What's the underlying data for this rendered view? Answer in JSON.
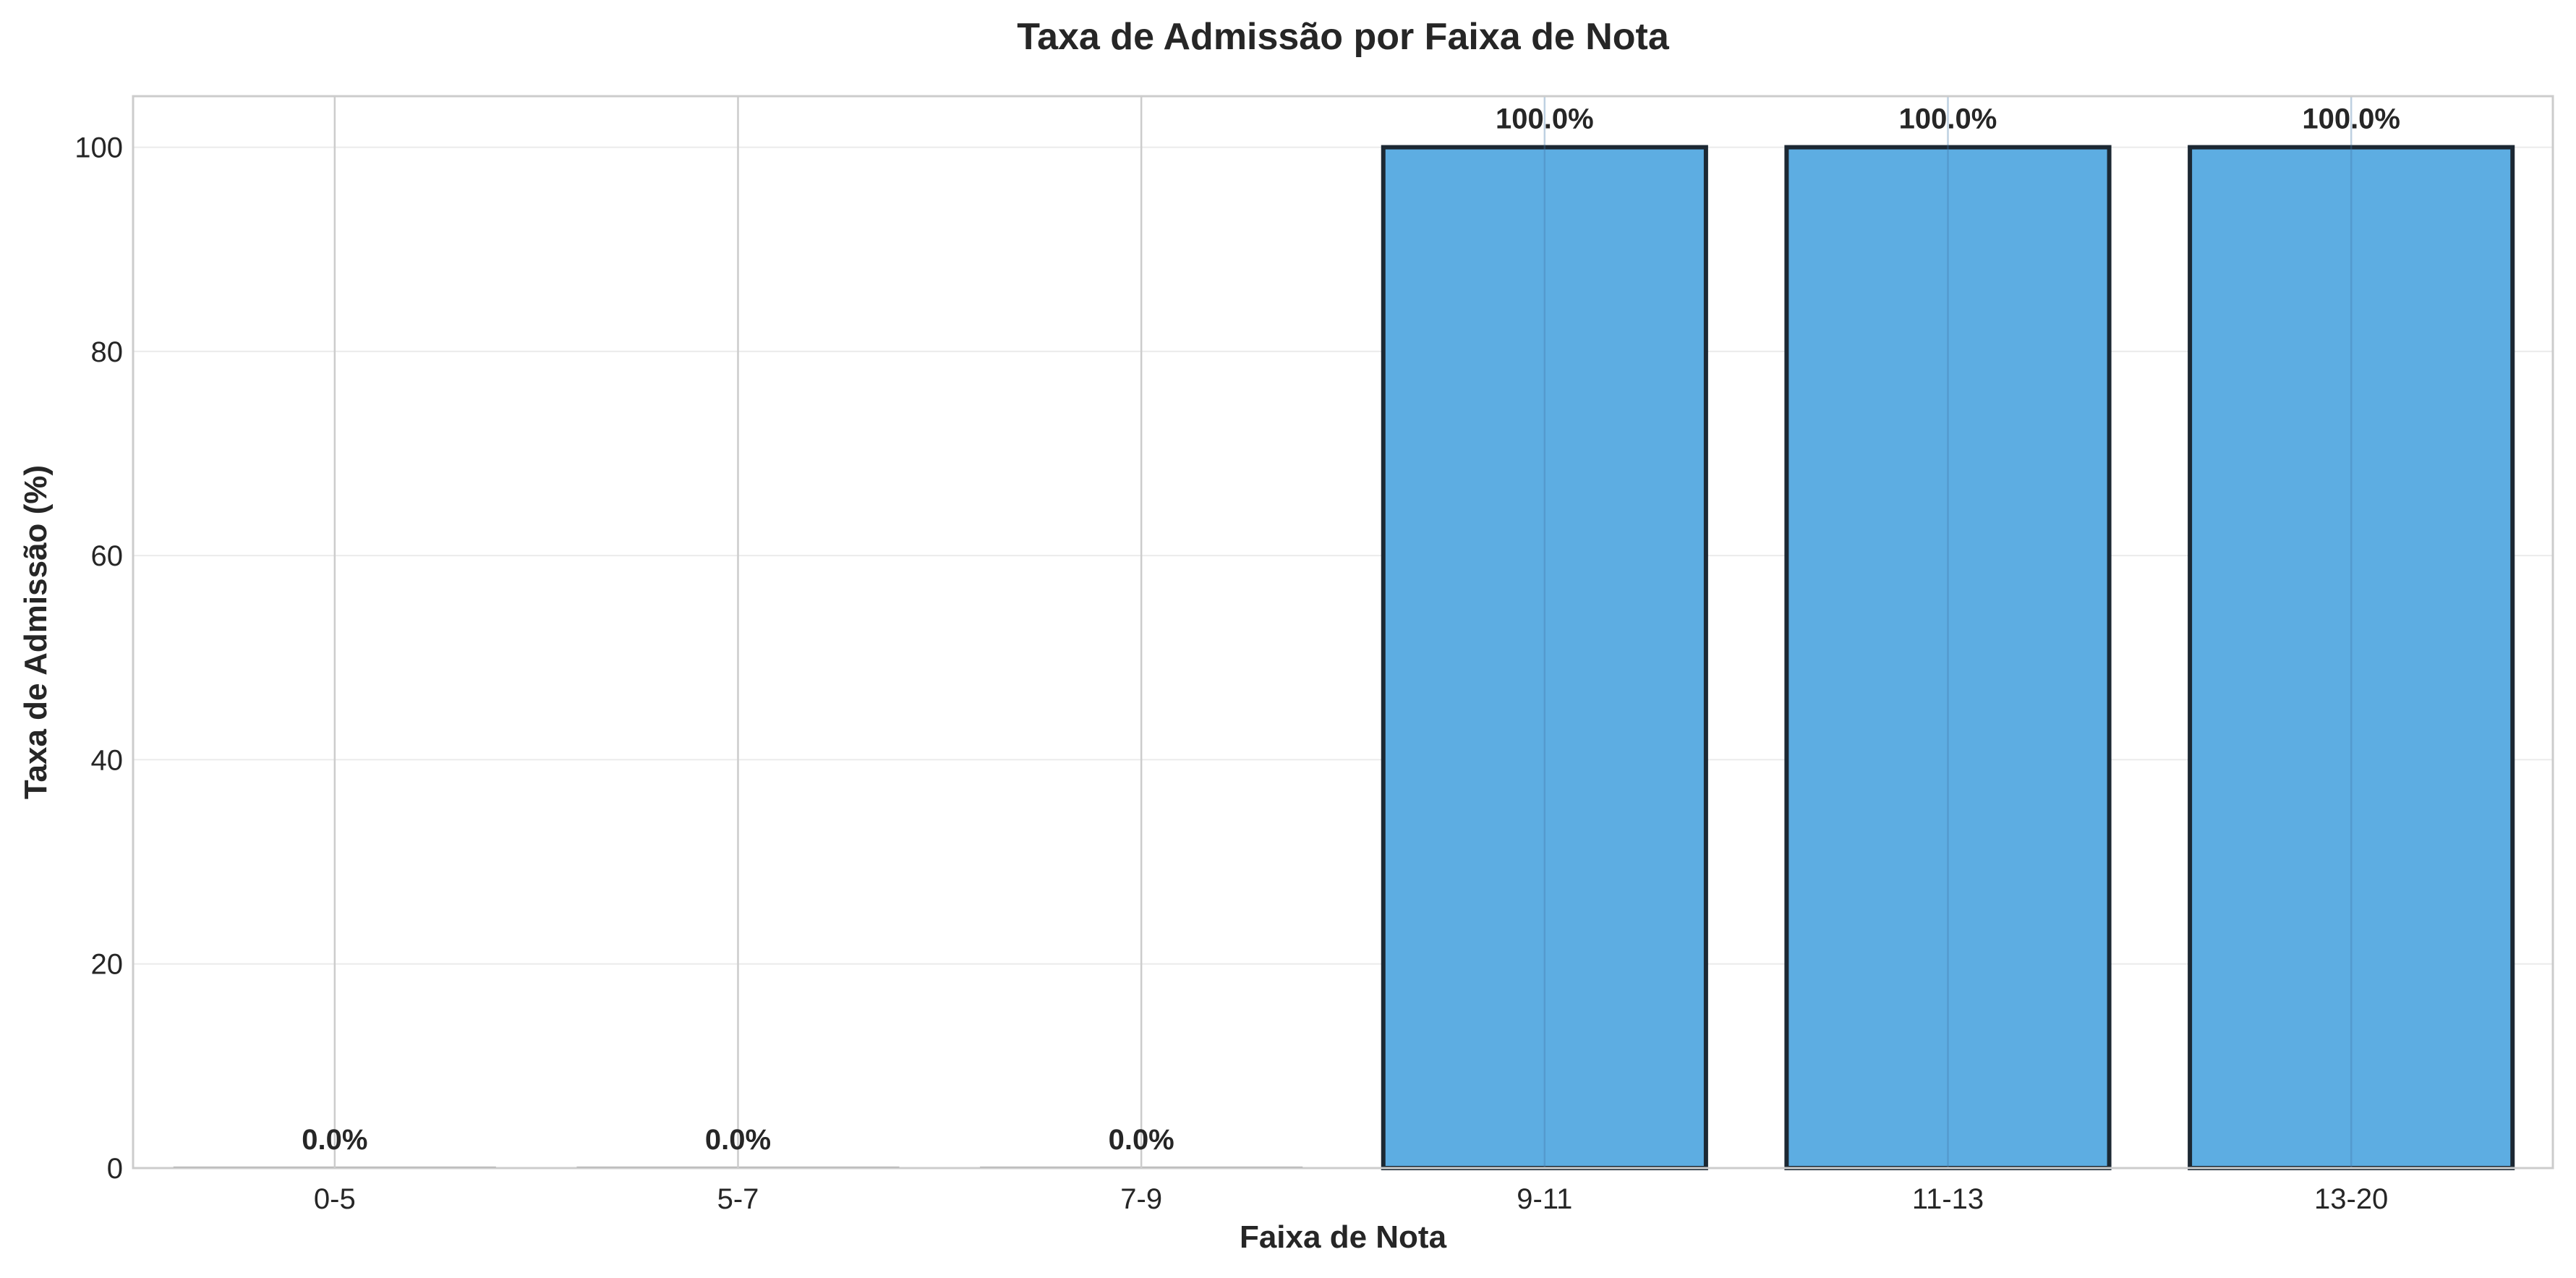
{
  "chart_data": {
    "type": "bar",
    "title": "Taxa de Admissão por Faixa de Nota",
    "xlabel": "Faixa de Nota",
    "ylabel": "Taxa de Admissão (%)",
    "categories": [
      "0-5",
      "5-7",
      "7-9",
      "9-11",
      "11-13",
      "13-20"
    ],
    "values": [
      0,
      0,
      0,
      100,
      100,
      100
    ],
    "value_labels": [
      "0.0%",
      "0.0%",
      "0.0%",
      "100.0%",
      "100.0%",
      "100.0%"
    ],
    "ylim": [
      0,
      105
    ],
    "yticks": [
      0,
      20,
      40,
      60,
      80,
      100
    ],
    "grid": true,
    "bar_color": "#5dade2",
    "bar_edge_color": "#1c2833"
  }
}
